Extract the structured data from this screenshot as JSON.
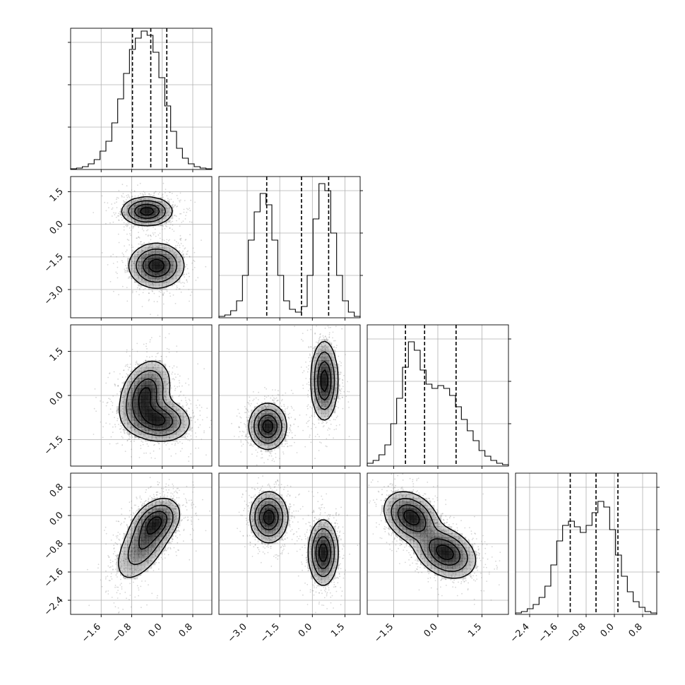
{
  "chart_data": {
    "type": "corner",
    "title": "",
    "params": [
      {
        "range": [
          -2.4,
          1.3
        ],
        "ticks": [
          -1.6,
          -0.8,
          0.0,
          0.8
        ],
        "tick_labels": [
          "−1.6",
          "−0.8",
          "0.0",
          "0.8"
        ],
        "quantiles": [
          -0.78,
          -0.3,
          0.12
        ]
      },
      {
        "range": [
          -4.3,
          2.2
        ],
        "ticks": [
          -3.0,
          -1.5,
          0.0,
          1.5
        ],
        "tick_labels": [
          "−3.0",
          "−1.5",
          "0.0",
          "1.5"
        ],
        "quantiles": [
          -2.1,
          -0.5,
          0.75
        ]
      },
      {
        "range": [
          -2.4,
          2.4
        ],
        "ticks": [
          -1.5,
          0.0,
          1.5
        ],
        "tick_labels": [
          "−1.5",
          "0.0",
          "1.5"
        ],
        "quantiles": [
          -1.1,
          -0.45,
          0.62
        ]
      },
      {
        "range": [
          -2.8,
          1.2
        ],
        "ticks": [
          -2.4,
          -1.6,
          -0.8,
          0.0,
          0.8
        ],
        "tick_labels": [
          "−2.4",
          "−1.6",
          "−0.8",
          "0.0",
          "0.8"
        ],
        "quantiles": [
          -1.25,
          -0.52,
          0.1
        ]
      }
    ],
    "histograms": [
      [
        0.005,
        0.01,
        0.02,
        0.04,
        0.07,
        0.13,
        0.2,
        0.33,
        0.5,
        0.68,
        0.85,
        0.93,
        0.98,
        0.95,
        0.83,
        0.65,
        0.45,
        0.27,
        0.15,
        0.08,
        0.04,
        0.02,
        0.01,
        0.005
      ],
      [
        0.01,
        0.02,
        0.05,
        0.12,
        0.3,
        0.55,
        0.75,
        0.88,
        0.8,
        0.55,
        0.3,
        0.12,
        0.06,
        0.04,
        0.08,
        0.3,
        0.7,
        0.95,
        0.9,
        0.6,
        0.3,
        0.12,
        0.04,
        0.01
      ],
      [
        0.02,
        0.04,
        0.08,
        0.15,
        0.3,
        0.48,
        0.7,
        0.88,
        0.82,
        0.68,
        0.58,
        0.55,
        0.57,
        0.55,
        0.5,
        0.42,
        0.33,
        0.25,
        0.18,
        0.11,
        0.07,
        0.04,
        0.02,
        0.01
      ],
      [
        0.01,
        0.02,
        0.04,
        0.07,
        0.12,
        0.2,
        0.35,
        0.52,
        0.63,
        0.66,
        0.62,
        0.58,
        0.63,
        0.72,
        0.8,
        0.76,
        0.6,
        0.42,
        0.27,
        0.16,
        0.09,
        0.05,
        0.02,
        0.01
      ]
    ],
    "pairs": [
      {
        "row": 1,
        "col": 0,
        "modes": [
          {
            "mx": -0.4,
            "my": 0.6,
            "sx": 0.32,
            "sy": 0.32,
            "rho": 0.0
          },
          {
            "mx": -0.15,
            "my": -1.9,
            "sx": 0.35,
            "sy": 0.5,
            "rho": 0.0
          }
        ]
      },
      {
        "row": 2,
        "col": 0,
        "modes": [
          {
            "mx": -0.45,
            "my": 0.05,
            "sx": 0.32,
            "sy": 0.55,
            "rho": 0.3
          },
          {
            "mx": -0.1,
            "my": -0.85,
            "sx": 0.4,
            "sy": 0.35,
            "rho": -0.1
          }
        ]
      },
      {
        "row": 2,
        "col": 1,
        "modes": [
          {
            "mx": -2.05,
            "my": -1.05,
            "sx": 0.42,
            "sy": 0.38,
            "rho": 0.0
          },
          {
            "mx": 0.55,
            "my": 0.5,
            "sx": 0.3,
            "sy": 0.65,
            "rho": 0.0
          }
        ]
      },
      {
        "row": 3,
        "col": 0,
        "modes": [
          {
            "mx": -0.45,
            "my": -0.75,
            "sx": 0.38,
            "sy": 0.55,
            "rho": 0.6
          },
          {
            "mx": -0.15,
            "my": -0.15,
            "sx": 0.3,
            "sy": 0.3,
            "rho": 0.3
          }
        ]
      },
      {
        "row": 3,
        "col": 1,
        "modes": [
          {
            "mx": -2.0,
            "my": -0.05,
            "sx": 0.42,
            "sy": 0.35,
            "rho": 0.0
          },
          {
            "mx": 0.5,
            "my": -1.05,
            "sx": 0.33,
            "sy": 0.45,
            "rho": 0.0
          }
        ]
      },
      {
        "row": 3,
        "col": 2,
        "modes": [
          {
            "mx": -0.9,
            "my": -0.05,
            "sx": 0.45,
            "sy": 0.35,
            "rho": -0.3
          },
          {
            "mx": 0.25,
            "my": -1.05,
            "sx": 0.5,
            "sy": 0.35,
            "rho": -0.3
          }
        ]
      }
    ],
    "grid": true,
    "colors": {
      "points": "#8a8a8a",
      "density": "#000000",
      "lines": "#000000"
    }
  }
}
